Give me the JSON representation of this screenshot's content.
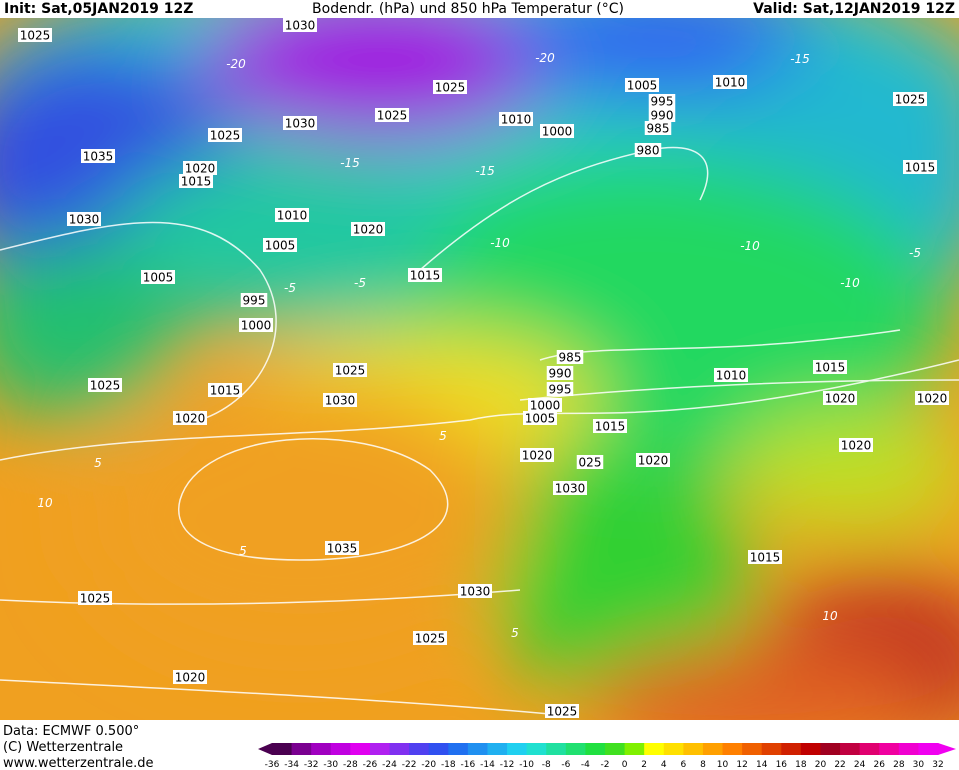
{
  "header": {
    "init": "Init: Sat,05JAN2019 12Z",
    "title": "Bodendr. (hPa) und 850 hPa Temperatur (°C)",
    "valid": "Valid: Sat,12JAN2019 12Z"
  },
  "footer": {
    "data": "Data: ECMWF  0.500°",
    "copyright": "(C) Wetterzentrale",
    "url": "www.wetterzentrale.de"
  },
  "colorbar_labels": [
    "-36",
    "-34",
    "-32",
    "-30",
    "-28",
    "-26",
    "-24",
    "-22",
    "-20",
    "-18",
    "-16",
    "-14",
    "-12",
    "-10",
    "-8",
    "-6",
    "-4",
    "-2",
    "0",
    "2",
    "4",
    "6",
    "8",
    "10",
    "12",
    "14",
    "16",
    "18",
    "20",
    "22",
    "24",
    "26",
    "28",
    "30",
    "32"
  ],
  "isobar_labels": [
    "1025",
    "1030",
    "1025",
    "1025",
    "1030",
    "1025",
    "1035",
    "1020",
    "1015",
    "1030",
    "1010",
    "1020",
    "1005",
    "1005",
    "995",
    "1000",
    "1015",
    "1025",
    "1015",
    "1020",
    "1025",
    "1030",
    "1035",
    "1030",
    "1025",
    "1025",
    "1020",
    "1025",
    "1005",
    "1010",
    "995",
    "990",
    "985",
    "1000",
    "1010",
    "980",
    "1025",
    "1015",
    "985",
    "990",
    "995",
    "1000",
    "1005",
    "1015",
    "1020",
    "025",
    "1020",
    "1030",
    "1010",
    "1015",
    "1020",
    "1020",
    "1020",
    "1015"
  ],
  "temperature_labels": [
    "-20",
    "-20",
    "-15",
    "-15",
    "-15",
    "-10",
    "-10",
    "-10",
    "-5",
    "-5",
    "-5",
    "5",
    "5",
    "10",
    "5",
    "10",
    "5"
  ]
}
